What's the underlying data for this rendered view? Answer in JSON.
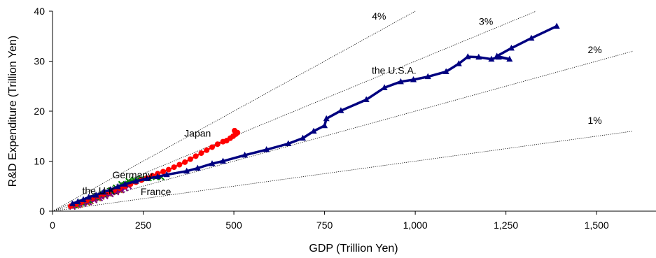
{
  "chart_data": {
    "type": "scatter",
    "xlabel": "GDP (Trillion Yen)",
    "ylabel": "R&D Expenditure (Trillion Yen)",
    "xlim": [
      0,
      1600
    ],
    "ylim": [
      0,
      40
    ],
    "x_ticks": [
      "0",
      "250",
      "500",
      "750",
      "1,000",
      "1,250",
      "1,500"
    ],
    "y_ticks": [
      "0",
      "10",
      "20",
      "30",
      "40"
    ],
    "x_tick_values": [
      0,
      250,
      500,
      750,
      1000,
      1250,
      1500
    ],
    "y_tick_values": [
      0,
      10,
      20,
      30,
      40
    ],
    "grid": false,
    "reference_lines": [
      {
        "label": "4%",
        "ratio": 0.04,
        "label_at": [
          900,
          38.3
        ]
      },
      {
        "label": "3%",
        "ratio": 0.03,
        "label_at": [
          1195,
          37.3
        ]
      },
      {
        "label": "2%",
        "ratio": 0.02,
        "label_at": [
          1495,
          31.6
        ]
      },
      {
        "label": "1%",
        "ratio": 0.01,
        "label_at": [
          1495,
          17.5
        ]
      }
    ],
    "series": [
      {
        "name": "the U.S.A.",
        "color": "#000080",
        "marker": "triangle",
        "label_at": [
          880,
          27.5
        ],
        "points": [
          [
            55,
            1.5
          ],
          [
            70,
            1.9
          ],
          [
            85,
            2.3
          ],
          [
            100,
            2.8
          ],
          [
            120,
            3.2
          ],
          [
            140,
            3.8
          ],
          [
            160,
            4.3
          ],
          [
            180,
            4.9
          ],
          [
            200,
            5.4
          ],
          [
            230,
            6.0
          ],
          [
            260,
            6.5
          ],
          [
            290,
            6.9
          ],
          [
            315,
            7.3
          ],
          [
            370,
            8.0
          ],
          [
            400,
            8.6
          ],
          [
            440,
            9.5
          ],
          [
            470,
            10.0
          ],
          [
            530,
            11.2
          ],
          [
            590,
            12.3
          ],
          [
            650,
            13.5
          ],
          [
            690,
            14.6
          ],
          [
            720,
            16.0
          ],
          [
            750,
            17.1
          ],
          [
            755,
            18.5
          ],
          [
            795,
            20.1
          ],
          [
            865,
            22.3
          ],
          [
            915,
            24.7
          ],
          [
            960,
            25.9
          ],
          [
            995,
            26.3
          ],
          [
            1035,
            26.9
          ],
          [
            1085,
            27.9
          ],
          [
            1120,
            29.5
          ],
          [
            1145,
            30.9
          ],
          [
            1175,
            30.8
          ],
          [
            1210,
            30.4
          ],
          [
            1230,
            30.8
          ],
          [
            1260,
            30.4
          ],
          [
            1225,
            31.0
          ],
          [
            1265,
            32.6
          ],
          [
            1320,
            34.6
          ],
          [
            1390,
            37.0
          ]
        ]
      },
      {
        "name": "Japan",
        "color": "#ff0000",
        "marker": "circle",
        "label_at": [
          400,
          14.9
        ],
        "points": [
          [
            50,
            1.0
          ],
          [
            65,
            1.4
          ],
          [
            80,
            1.8
          ],
          [
            95,
            2.2
          ],
          [
            110,
            2.6
          ],
          [
            125,
            3.0
          ],
          [
            140,
            3.4
          ],
          [
            155,
            3.8
          ],
          [
            170,
            4.2
          ],
          [
            185,
            4.6
          ],
          [
            200,
            5.0
          ],
          [
            215,
            5.4
          ],
          [
            230,
            5.8
          ],
          [
            245,
            6.2
          ],
          [
            260,
            6.6
          ],
          [
            275,
            7.1
          ],
          [
            290,
            7.5
          ],
          [
            305,
            7.9
          ],
          [
            320,
            8.3
          ],
          [
            335,
            8.8
          ],
          [
            350,
            9.3
          ],
          [
            365,
            9.8
          ],
          [
            380,
            10.4
          ],
          [
            395,
            11.0
          ],
          [
            410,
            11.6
          ],
          [
            425,
            12.2
          ],
          [
            440,
            12.8
          ],
          [
            455,
            13.4
          ],
          [
            470,
            13.9
          ],
          [
            480,
            14.1
          ],
          [
            490,
            14.6
          ],
          [
            498,
            15.0
          ],
          [
            505,
            15.4
          ],
          [
            510,
            15.7
          ],
          [
            502,
            16.1
          ]
        ]
      },
      {
        "name": "Germany",
        "color": "#008000",
        "marker": "x",
        "label_at": [
          165,
          6.6
        ],
        "points": [
          [
            60,
            1.2
          ],
          [
            80,
            1.7
          ],
          [
            100,
            2.2
          ],
          [
            120,
            2.8
          ],
          [
            140,
            3.4
          ],
          [
            160,
            4.1
          ],
          [
            175,
            4.7
          ],
          [
            190,
            5.4
          ],
          [
            210,
            6.0
          ],
          [
            225,
            6.3
          ],
          [
            245,
            6.5
          ],
          [
            265,
            6.6
          ],
          [
            285,
            6.8
          ],
          [
            300,
            6.8
          ]
        ]
      },
      {
        "name": "France",
        "color": "#800080",
        "marker": "x",
        "label_at": [
          243,
          3.2
        ],
        "points": [
          [
            55,
            0.9
          ],
          [
            70,
            1.2
          ],
          [
            85,
            1.5
          ],
          [
            100,
            1.8
          ],
          [
            115,
            2.2
          ],
          [
            130,
            2.6
          ],
          [
            145,
            3.0
          ],
          [
            160,
            3.4
          ],
          [
            175,
            3.8
          ],
          [
            190,
            4.2
          ],
          [
            200,
            4.6
          ],
          [
            210,
            5.0
          ]
        ]
      },
      {
        "name": "the U.K.",
        "color": "#a05000",
        "marker": "x",
        "label_at": [
          82,
          3.4
        ],
        "points": [
          [
            55,
            0.9
          ],
          [
            65,
            1.1
          ],
          [
            75,
            1.3
          ],
          [
            85,
            1.5
          ],
          [
            95,
            1.7
          ],
          [
            105,
            2.0
          ],
          [
            115,
            2.3
          ],
          [
            125,
            2.6
          ],
          [
            135,
            2.9
          ],
          [
            145,
            3.2
          ],
          [
            155,
            3.5
          ],
          [
            165,
            3.8
          ],
          [
            175,
            4.0
          ],
          [
            185,
            4.2
          ]
        ]
      }
    ]
  }
}
